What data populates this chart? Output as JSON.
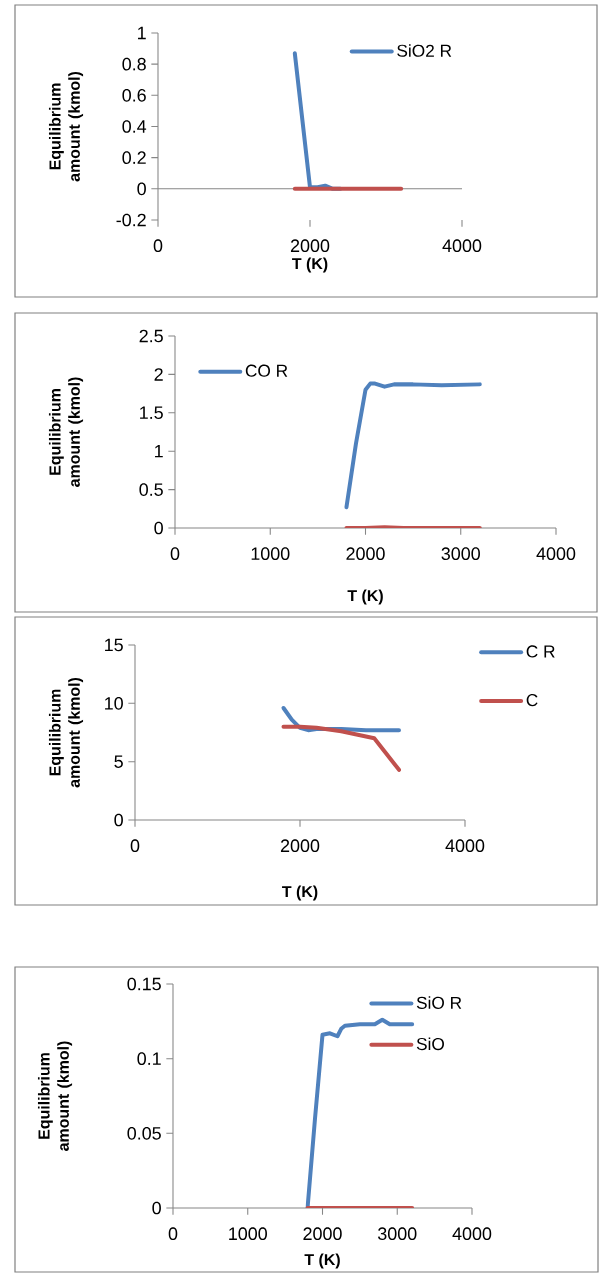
{
  "chart_data": [
    {
      "type": "line",
      "xlabel": "T (K)",
      "ylabel": "Equilibrium amount (kmol)",
      "xlim": [
        0,
        4000
      ],
      "ylim": [
        -0.2,
        1
      ],
      "xticks": [
        0,
        2000,
        4000
      ],
      "yticks": [
        -0.2,
        0,
        0.2,
        0.4,
        0.6,
        0.8,
        1
      ],
      "legend": "top right",
      "series": [
        {
          "name": "SiO2  R",
          "color": "#4f81bd",
          "x": [
            1800,
            1900,
            2000,
            2100,
            2200,
            2300,
            2400
          ],
          "values": [
            0.87,
            0.44,
            0.01,
            0.01,
            0.02,
            0,
            0
          ]
        },
        {
          "color": "#c0504d",
          "x": [
            1800,
            2200,
            2600,
            3200
          ],
          "values": [
            0,
            0,
            0,
            0
          ]
        }
      ]
    },
    {
      "type": "line",
      "xlabel": "T (K)",
      "ylabel": "Equilibrium amount (kmol)",
      "xlim": [
        0,
        4000
      ],
      "ylim": [
        0,
        2.5
      ],
      "xticks": [
        0,
        1000,
        2000,
        3000,
        4000
      ],
      "yticks": [
        0,
        0.5,
        1,
        1.5,
        2,
        2.5
      ],
      "legend": "top left",
      "series": [
        {
          "name": "CO   R",
          "color": "#4f81bd",
          "x": [
            1800,
            1900,
            2000,
            2050,
            2100,
            2200,
            2300,
            2500,
            2800,
            3200
          ],
          "values": [
            0.27,
            1.1,
            1.8,
            1.88,
            1.88,
            1.84,
            1.87,
            1.87,
            1.86,
            1.87
          ]
        },
        {
          "color": "#c0504d",
          "x": [
            1800,
            2000,
            2200,
            2400,
            3200
          ],
          "values": [
            0,
            0,
            0.01,
            0,
            0
          ]
        }
      ]
    },
    {
      "type": "line",
      "xlabel": "T (K)",
      "ylabel": "Equilibrium amount (kmol)",
      "xlim": [
        0,
        4000
      ],
      "ylim": [
        0,
        15
      ],
      "xticks": [
        0,
        2000,
        4000
      ],
      "yticks": [
        0,
        5,
        10,
        15
      ],
      "legend": "right",
      "series": [
        {
          "name": "C    R",
          "color": "#4f81bd",
          "x": [
            1800,
            1900,
            2000,
            2100,
            2200,
            2500,
            2800,
            3200
          ],
          "values": [
            9.6,
            8.6,
            7.9,
            7.7,
            7.8,
            7.8,
            7.7,
            7.7
          ]
        },
        {
          "name": "C",
          "color": "#c0504d",
          "x": [
            1800,
            2000,
            2200,
            2500,
            2900,
            3200
          ],
          "values": [
            8.0,
            8.0,
            7.9,
            7.6,
            7.0,
            4.3
          ]
        }
      ]
    },
    {
      "type": "line",
      "xlabel": "T (K)",
      "ylabel": "Equilibrium amount (kmol)",
      "xlim": [
        0,
        4000
      ],
      "ylim": [
        0,
        0.15
      ],
      "xticks": [
        0,
        1000,
        2000,
        3000,
        4000
      ],
      "yticks": [
        0,
        0.05,
        0.1,
        0.15
      ],
      "legend": "top right",
      "series": [
        {
          "name": "SiO   R",
          "color": "#4f81bd",
          "x": [
            1800,
            1900,
            2000,
            2100,
            2200,
            2250,
            2300,
            2500,
            2700,
            2800,
            2900,
            3200
          ],
          "values": [
            0,
            0.06,
            0.116,
            0.117,
            0.115,
            0.12,
            0.122,
            0.123,
            0.123,
            0.126,
            0.123,
            0.123
          ]
        },
        {
          "name": "SiO",
          "color": "#c0504d",
          "x": [
            1800,
            3200
          ],
          "values": [
            0,
            0
          ]
        }
      ]
    }
  ]
}
